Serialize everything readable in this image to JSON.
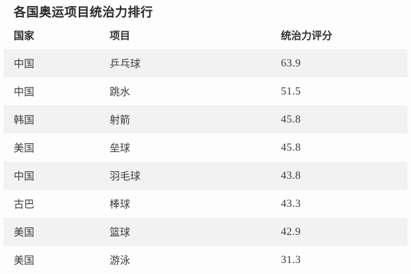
{
  "title": "各国奥运项目统治力排行",
  "chart_data": {
    "type": "table",
    "title": "各国奥运项目统治力排行",
    "columns": [
      "国家",
      "项目",
      "统治力评分"
    ],
    "rows": [
      [
        "中国",
        "乒乓球",
        "63.9"
      ],
      [
        "中国",
        "跳水",
        "51.5"
      ],
      [
        "韩国",
        "射箭",
        "45.8"
      ],
      [
        "美国",
        "垒球",
        "45.8"
      ],
      [
        "中国",
        "羽毛球",
        "43.8"
      ],
      [
        "古巴",
        "棒球",
        "43.3"
      ],
      [
        "美国",
        "篮球",
        "42.9"
      ],
      [
        "美国",
        "游泳",
        "31.3"
      ]
    ],
    "layout_hints": {
      "zebra_striping": true,
      "striped_rows": "odd rows starting with first data row",
      "alignment": "left"
    }
  },
  "style": {
    "background": "#fdfdfd",
    "row_alt_color": "#f2f2f2",
    "text_color": "#3d3d3d",
    "title_color": "#2b2b2b"
  }
}
